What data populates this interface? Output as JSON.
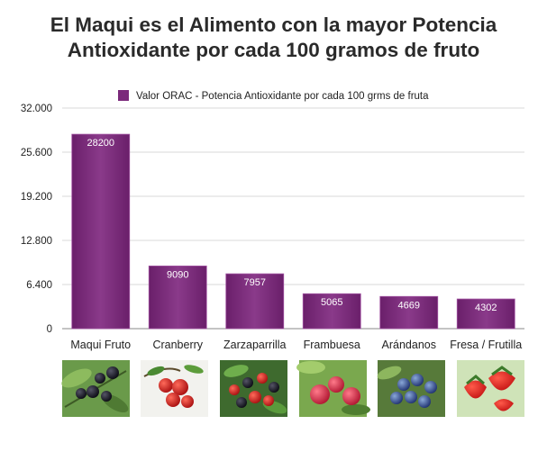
{
  "title": {
    "line1": "El Maqui es el Alimento con la mayor Potencia",
    "line2": "Antioxidante por cada 100 gramos de fruto"
  },
  "colors": {
    "bar": "#7b2a7b",
    "bar_light": "#a152a1",
    "grid": "#d9d9d9",
    "axis": "#8a8a8a"
  },
  "chart_data": {
    "type": "bar",
    "categories": [
      "Maqui Fruto",
      "Cranberry",
      "Zarzaparrilla",
      "Frambuesa",
      "Arándanos",
      "Fresa / Frutilla"
    ],
    "series": [
      {
        "name": "Valor ORAC - Potencia Antioxidante por cada 100 grms de fruta",
        "values": [
          28200,
          9090,
          7957,
          5065,
          4669,
          4302
        ]
      }
    ],
    "value_labels": [
      "28200",
      "9090",
      "7957",
      "5065",
      "4669",
      "4302"
    ],
    "yticks": [
      0,
      6400,
      12800,
      19200,
      25600,
      32000
    ],
    "ytick_labels": [
      "0",
      "6.400",
      "12.800",
      "19.200",
      "25.600",
      "32.000"
    ],
    "ylim": [
      0,
      32000
    ],
    "grid": true,
    "legend_position": "top-right",
    "images": [
      "maqui-berries",
      "cranberries",
      "zarzaparrilla-berries",
      "raspberries",
      "blueberries",
      "strawberries"
    ]
  }
}
